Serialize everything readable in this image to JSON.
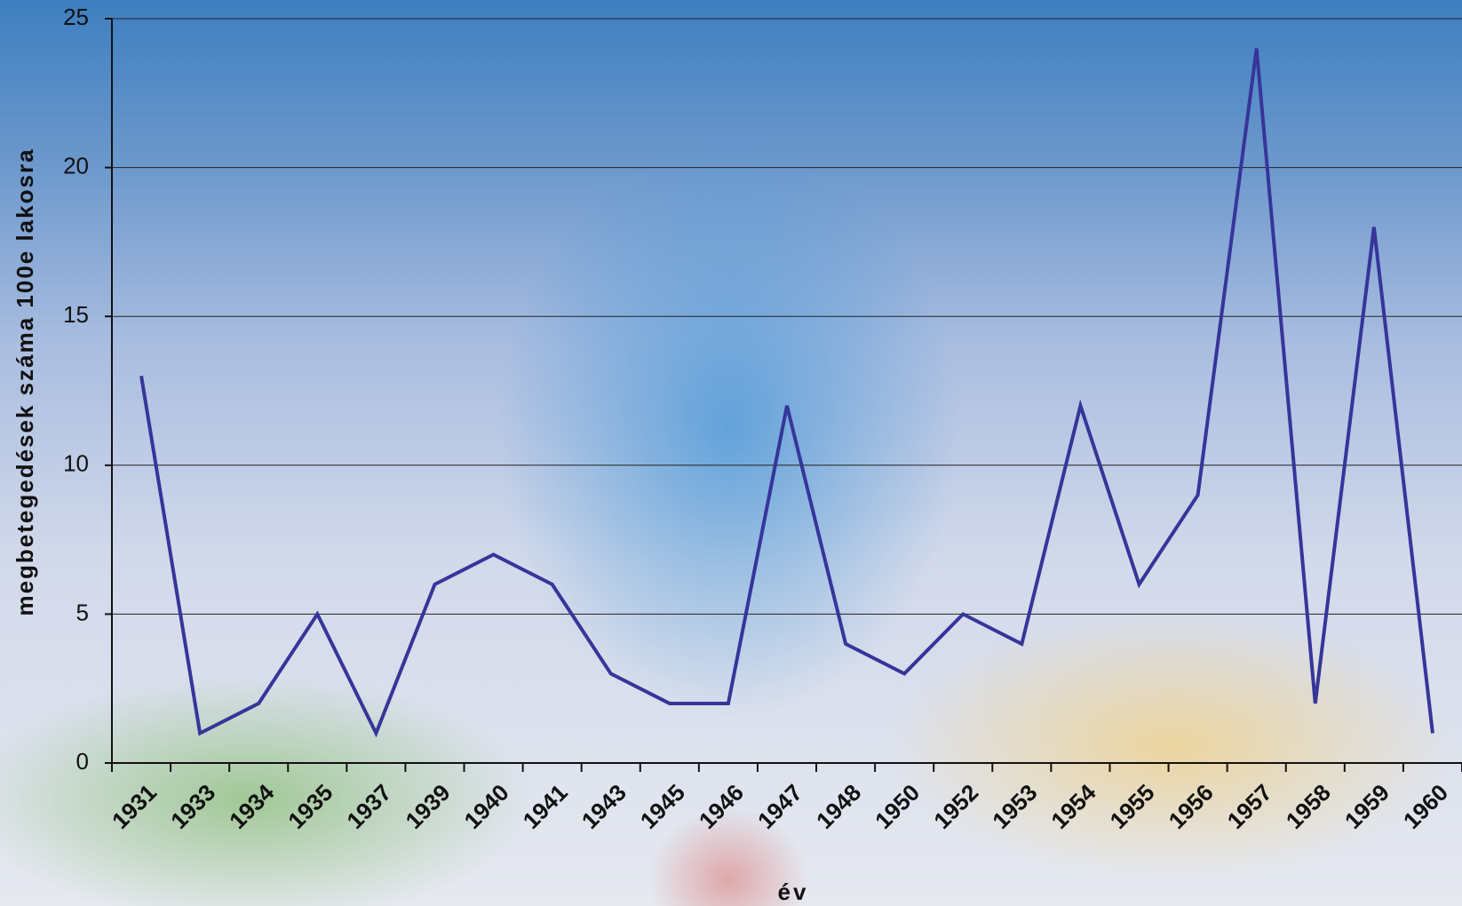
{
  "chart_data": {
    "type": "line",
    "x_label": "év",
    "y_label": "megbetegedések száma 100e lakosra",
    "categories": [
      "1931",
      "1933",
      "1934",
      "1935",
      "1937",
      "1939",
      "1940",
      "1941",
      "1943",
      "1945",
      "1946",
      "1947",
      "1948",
      "1950",
      "1952",
      "1953",
      "1954",
      "1955",
      "1956",
      "1957",
      "1958",
      "1959",
      "1960"
    ],
    "values": [
      13,
      1,
      2,
      5,
      1,
      6,
      7,
      6,
      3,
      2,
      2,
      12,
      4,
      3,
      5,
      4,
      12,
      6,
      9,
      24,
      2,
      18,
      1
    ],
    "color": "#36359a",
    "ylim": [
      0,
      25
    ],
    "yticks": [
      0,
      5,
      10,
      15,
      20,
      25
    ],
    "grid": true
  }
}
